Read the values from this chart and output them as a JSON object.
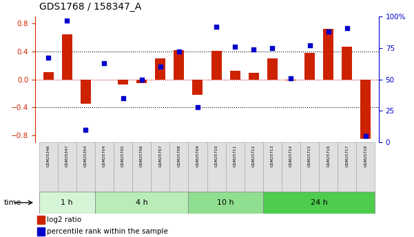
{
  "title": "GDS1768 / 158347_A",
  "samples": [
    "GSM25346",
    "GSM25347",
    "GSM25354",
    "GSM25704",
    "GSM25705",
    "GSM25706",
    "GSM25707",
    "GSM25708",
    "GSM25709",
    "GSM25710",
    "GSM25711",
    "GSM25712",
    "GSM25713",
    "GSM25714",
    "GSM25715",
    "GSM25716",
    "GSM25717",
    "GSM25718"
  ],
  "log2_ratio": [
    0.1,
    0.65,
    -0.35,
    0.0,
    -0.07,
    -0.05,
    0.3,
    0.42,
    -0.22,
    0.41,
    0.12,
    0.09,
    0.3,
    -0.01,
    0.38,
    0.72,
    0.47,
    -0.85
  ],
  "percentile": [
    67,
    97,
    10,
    63,
    35,
    50,
    60,
    72,
    28,
    92,
    76,
    74,
    75,
    51,
    77,
    88,
    91,
    5
  ],
  "groups": [
    {
      "label": "1 h",
      "start": 0,
      "end": 3,
      "color": "#d6f5d6"
    },
    {
      "label": "4 h",
      "start": 3,
      "end": 8,
      "color": "#b8edb8"
    },
    {
      "label": "10 h",
      "start": 8,
      "end": 12,
      "color": "#90df90"
    },
    {
      "label": "24 h",
      "start": 12,
      "end": 18,
      "color": "#4dcc4d"
    }
  ],
  "ylim_left": [
    -0.9,
    0.9
  ],
  "ylim_right": [
    0,
    100
  ],
  "bar_color": "#cc2200",
  "dot_color": "#0000cc",
  "zero_line_color": "#cc0000",
  "background_color": "#ffffff"
}
